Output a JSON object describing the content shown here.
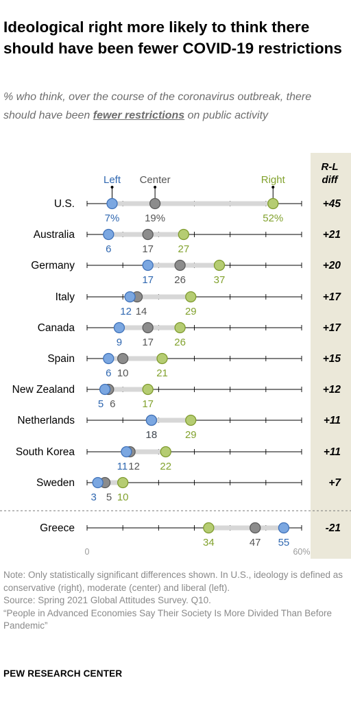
{
  "title": "Ideological right more likely to think there should have been fewer COVID-19 restrictions",
  "subtitle": {
    "before": "% who think, over the course of the coronavirus outbreak, there should have been ",
    "highlight": "fewer restrictions",
    "after": " on public activity"
  },
  "chart_data": {
    "type": "dot",
    "series": [
      {
        "name": "Left",
        "color": "#7ba7e1",
        "stroke": "#3f71b8",
        "label_color": "#2f67b0"
      },
      {
        "name": "Center",
        "color": "#8c8c8c",
        "stroke": "#5a5a5a",
        "label_color": "#555555"
      },
      {
        "name": "Right",
        "color": "#b5cc72",
        "stroke": "#7e9a2e",
        "label_color": "#82a22e"
      }
    ],
    "diff_header": [
      "R-L",
      "diff"
    ],
    "xlim": [
      0,
      60
    ],
    "tick_labels": [
      "0",
      "60%"
    ],
    "rows": [
      {
        "country": "U.S.",
        "left": 7,
        "center": 19,
        "right": 52,
        "left_label": "7%",
        "center_label": "19%",
        "right_label": "52%",
        "diff": "+45"
      },
      {
        "country": "Australia",
        "left": 6,
        "center": 17,
        "right": 27,
        "left_label": "6",
        "center_label": "17",
        "right_label": "27",
        "diff": "+21"
      },
      {
        "country": "Germany",
        "left": 17,
        "center": 26,
        "right": 37,
        "left_label": "17",
        "center_label": "26",
        "right_label": "37",
        "diff": "+20"
      },
      {
        "country": "Italy",
        "left": 12,
        "center": 14,
        "right": 29,
        "left_label": "12",
        "center_label": "14",
        "right_label": "29",
        "diff": "+17"
      },
      {
        "country": "Canada",
        "left": 9,
        "center": 17,
        "right": 26,
        "left_label": "9",
        "center_label": "17",
        "right_label": "26",
        "diff": "+17"
      },
      {
        "country": "Spain",
        "left": 6,
        "center": 10,
        "right": 21,
        "left_label": "6",
        "center_label": "10",
        "right_label": "21",
        "diff": "+15"
      },
      {
        "country": "New Zealand",
        "left": 5,
        "center": 6,
        "right": 17,
        "left_label": "5",
        "center_label": "6",
        "right_label": "17",
        "diff": "+12"
      },
      {
        "country": "Netherlands",
        "left": 18,
        "center": 18,
        "right": 29,
        "left_label": "18",
        "center_label": "18",
        "right_label": "29",
        "diff": "+11"
      },
      {
        "country": "South Korea",
        "left": 11,
        "center": 12,
        "right": 22,
        "left_label": "11",
        "center_label": "12",
        "right_label": "22",
        "diff": "+11"
      },
      {
        "country": "Sweden",
        "left": 3,
        "center": 5,
        "right": 10,
        "left_label": "3",
        "center_label": "5",
        "right_label": "10",
        "diff": "+7"
      },
      {
        "country": "Greece",
        "left": 55,
        "center": 47,
        "right": 34,
        "left_label": "55",
        "center_label": "47",
        "right_label": "34",
        "diff": "-21"
      }
    ]
  },
  "notes": [
    "Note: Only statistically significant differences shown. In U.S., ideology is defined as conservative (right), moderate (center) and liberal (left).",
    "Source: Spring 2021 Global Attitudes Survey. Q10.",
    "“People in Advanced Economies Say Their Society Is More Divided Than Before Pandemic”"
  ],
  "brand": "PEW RESEARCH CENTER"
}
